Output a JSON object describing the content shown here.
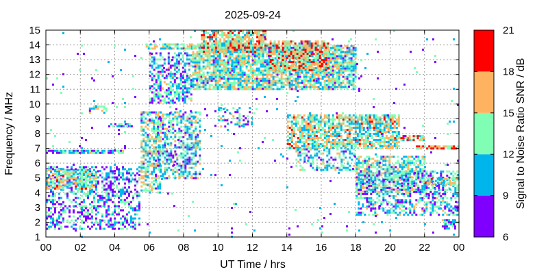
{
  "chart_data": {
    "type": "heatmap",
    "title": "2025-09-24",
    "xlabel": "UT Time / hrs",
    "ylabel": "Frequency / MHz",
    "xlim": [
      0,
      24
    ],
    "ylim": [
      1,
      15
    ],
    "x_ticks": [
      "00",
      "02",
      "04",
      "06",
      "08",
      "10",
      "12",
      "14",
      "16",
      "18",
      "20",
      "22",
      "00"
    ],
    "y_ticks": [
      "1",
      "2",
      "3",
      "4",
      "5",
      "6",
      "7",
      "8",
      "9",
      "10",
      "11",
      "12",
      "13",
      "14",
      "15"
    ],
    "grid": true,
    "colorbar": {
      "label": "Signal to Noise Ratio SNR / dB",
      "ticks": [
        "6",
        "9",
        "12",
        "15",
        "18",
        "21"
      ],
      "bins": [
        {
          "from": 6,
          "to": 9,
          "color": "#7f00ff"
        },
        {
          "from": 9,
          "to": 12,
          "color": "#00b5eb"
        },
        {
          "from": 12,
          "to": 15,
          "color": "#80ffb4"
        },
        {
          "from": 15,
          "to": 18,
          "color": "#ffb360"
        },
        {
          "from": 18,
          "to": 21,
          "color": "#ff0000"
        }
      ]
    },
    "density_regions": [
      {
        "x": [
          0.0,
          5.5
        ],
        "y": [
          1.5,
          5.8
        ],
        "snr": 10,
        "density": 0.45
      },
      {
        "x": [
          0.0,
          3.0
        ],
        "y": [
          4.2,
          5.6
        ],
        "snr": 14,
        "density": 0.7
      },
      {
        "x": [
          0.0,
          4.5
        ],
        "y": [
          6.6,
          6.9
        ],
        "snr": 11,
        "density": 0.85
      },
      {
        "x": [
          2.5,
          3.5
        ],
        "y": [
          9.4,
          9.9
        ],
        "snr": 12,
        "density": 0.6
      },
      {
        "x": [
          3.5,
          5.2
        ],
        "y": [
          8.4,
          8.7
        ],
        "snr": 10,
        "density": 0.5
      },
      {
        "x": [
          5.5,
          6.7
        ],
        "y": [
          4.0,
          9.5
        ],
        "snr": 13,
        "density": 0.6
      },
      {
        "x": [
          5.8,
          13.5
        ],
        "y": [
          13.7,
          14.1
        ],
        "snr": 14,
        "density": 0.7
      },
      {
        "x": [
          6.0,
          8.5
        ],
        "y": [
          10.0,
          13.5
        ],
        "snr": 11,
        "density": 0.55
      },
      {
        "x": [
          6.5,
          9.0
        ],
        "y": [
          5.0,
          9.5
        ],
        "snr": 12,
        "density": 0.55
      },
      {
        "x": [
          8.5,
          18.0
        ],
        "y": [
          11.0,
          14.0
        ],
        "snr": 13,
        "density": 0.75
      },
      {
        "x": [
          9.0,
          12.8
        ],
        "y": [
          13.5,
          15.0
        ],
        "snr": 15,
        "density": 0.75
      },
      {
        "x": [
          10.0,
          12.0
        ],
        "y": [
          8.5,
          9.8
        ],
        "snr": 11,
        "density": 0.3
      },
      {
        "x": [
          13.0,
          16.5
        ],
        "y": [
          12.3,
          14.3
        ],
        "snr": 16,
        "density": 0.75
      },
      {
        "x": [
          14.0,
          20.5
        ],
        "y": [
          7.0,
          9.3
        ],
        "snr": 14,
        "density": 0.7
      },
      {
        "x": [
          14.5,
          18.0
        ],
        "y": [
          5.5,
          7.0
        ],
        "snr": 12,
        "density": 0.5
      },
      {
        "x": [
          18.0,
          22.0
        ],
        "y": [
          4.0,
          6.5
        ],
        "snr": 13,
        "density": 0.65
      },
      {
        "x": [
          18.0,
          24.0
        ],
        "y": [
          2.5,
          5.5
        ],
        "snr": 11,
        "density": 0.45
      },
      {
        "x": [
          20.0,
          22.0
        ],
        "y": [
          7.5,
          7.9
        ],
        "snr": 16,
        "density": 0.7
      },
      {
        "x": [
          21.5,
          24.0
        ],
        "y": [
          7.0,
          7.2
        ],
        "snr": 17,
        "density": 0.85
      },
      {
        "x": [
          22.0,
          24.0
        ],
        "y": [
          4.5,
          5.0
        ],
        "snr": 14,
        "density": 0.65
      },
      {
        "x": [
          23.0,
          24.0
        ],
        "y": [
          1.5,
          2.2
        ],
        "snr": 11,
        "density": 0.5
      },
      {
        "x": [
          0.0,
          24.0
        ],
        "y": [
          1.0,
          15.0
        ],
        "snr": 10,
        "density": 0.015
      }
    ]
  }
}
